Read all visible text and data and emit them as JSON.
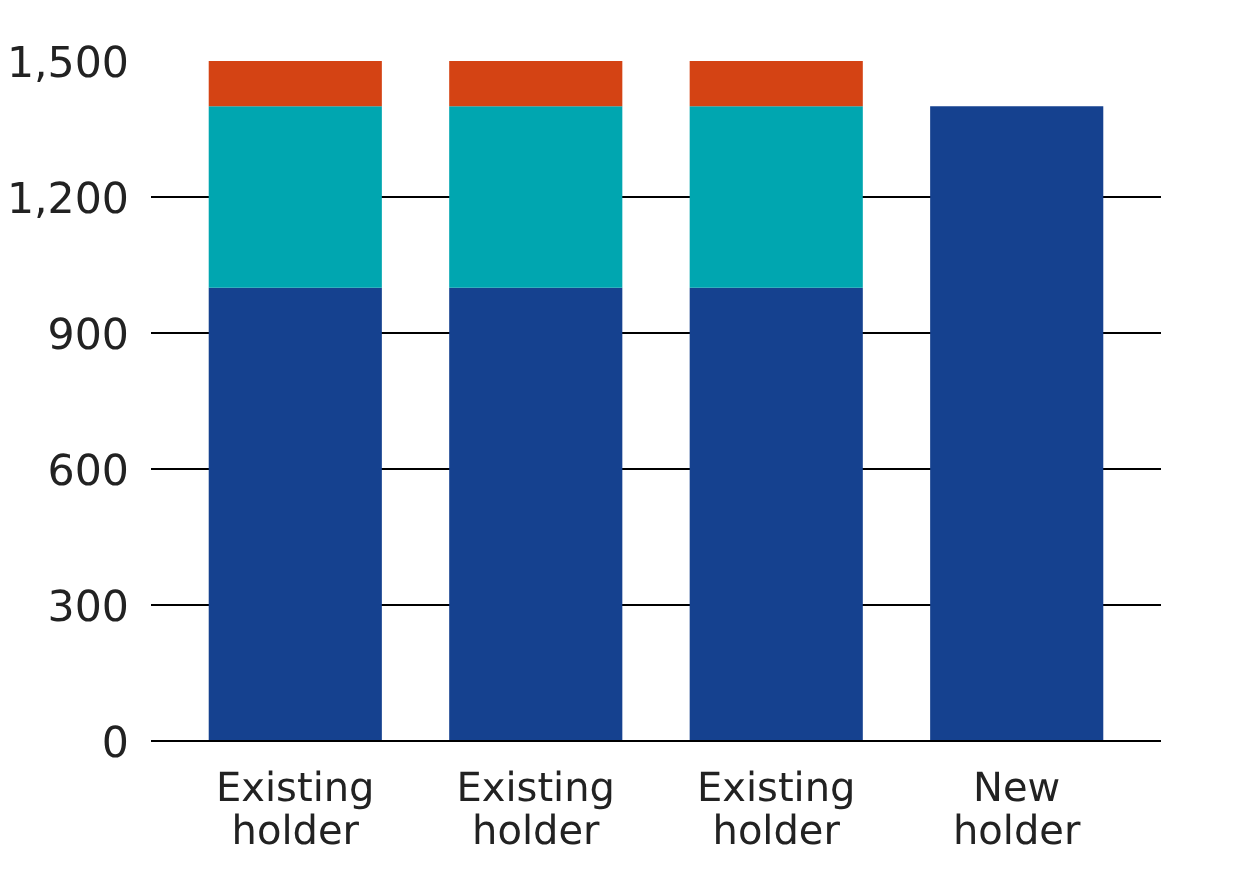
{
  "chart_data": {
    "type": "bar",
    "stacked": true,
    "categories": [
      "Existing holder",
      "Existing holder",
      "Existing holder",
      "New holder"
    ],
    "series": [
      {
        "color": "#15418f",
        "values": [
          1000,
          1000,
          1000,
          1400
        ]
      },
      {
        "color": "#00a6b0",
        "values": [
          400,
          400,
          400,
          null
        ]
      },
      {
        "color": "#d44314",
        "values": [
          100,
          100,
          100,
          null
        ]
      }
    ],
    "ylim": [
      0,
      1500
    ],
    "yticks": [
      0,
      {
        "value": 300,
        "label": "300"
      },
      {
        "value": 600,
        "label": "600"
      },
      {
        "value": 900,
        "label": "900"
      },
      {
        "value": 1200,
        "label": "1,200"
      },
      {
        "value": 1500,
        "label": "1,500"
      }
    ],
    "grid": "y"
  }
}
